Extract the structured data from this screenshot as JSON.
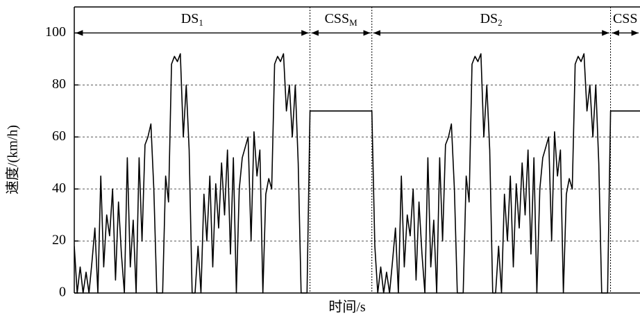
{
  "chart_data": {
    "type": "line",
    "ylabel": "速度/(km/h)",
    "xlabel": "时间/s",
    "color": "#000000",
    "values": [
      18,
      0,
      10,
      0,
      8,
      0,
      12,
      25,
      0,
      45,
      10,
      30,
      22,
      40,
      5,
      35,
      15,
      0,
      52,
      10,
      28,
      0,
      52,
      20,
      57,
      60,
      65,
      40,
      0,
      0,
      0,
      45,
      35,
      88,
      91,
      89,
      92,
      60,
      80,
      55,
      0,
      0,
      18,
      0,
      38,
      20,
      45,
      10,
      42,
      25,
      50,
      30,
      55,
      15,
      52,
      0,
      40,
      52,
      56,
      60,
      20,
      62,
      45,
      55,
      0,
      38,
      44,
      40,
      88,
      91,
      89,
      92,
      70,
      80,
      60,
      80,
      50,
      0,
      0,
      0,
      70,
      70,
      70,
      70,
      70,
      70,
      70,
      70,
      70,
      70,
      70,
      70,
      70,
      70,
      70,
      70,
      70,
      70,
      70,
      70,
      70,
      70,
      18,
      0,
      10,
      0,
      8,
      0,
      12,
      25,
      0,
      45,
      10,
      30,
      22,
      40,
      5,
      35,
      15,
      0,
      52,
      10,
      28,
      0,
      52,
      20,
      57,
      60,
      65,
      40,
      0,
      0,
      0,
      45,
      35,
      88,
      91,
      89,
      92,
      60,
      80,
      55,
      0,
      0,
      18,
      0,
      38,
      20,
      45,
      10,
      42,
      25,
      50,
      30,
      55,
      15,
      52,
      0,
      40,
      52,
      56,
      60,
      20,
      62,
      45,
      55,
      0,
      38,
      44,
      40,
      88,
      91,
      89,
      92,
      70,
      80,
      60,
      80,
      50,
      0,
      0,
      0,
      70,
      70,
      70,
      70,
      70,
      70,
      70,
      70,
      70,
      70,
      70
    ],
    "xlim": [
      0,
      192
    ],
    "ylim": [
      0,
      110
    ],
    "yticks": [
      0,
      20,
      40,
      60,
      80,
      100
    ],
    "grid": true,
    "regions": [
      {
        "label": "DS",
        "sub": "1",
        "start": 0,
        "end": 80
      },
      {
        "label": "CSS",
        "sub": "M",
        "start": 80,
        "end": 101
      },
      {
        "label": "DS",
        "sub": "2",
        "start": 101,
        "end": 182
      },
      {
        "label": "CSS",
        "start": 182,
        "end": 192
      }
    ]
  }
}
